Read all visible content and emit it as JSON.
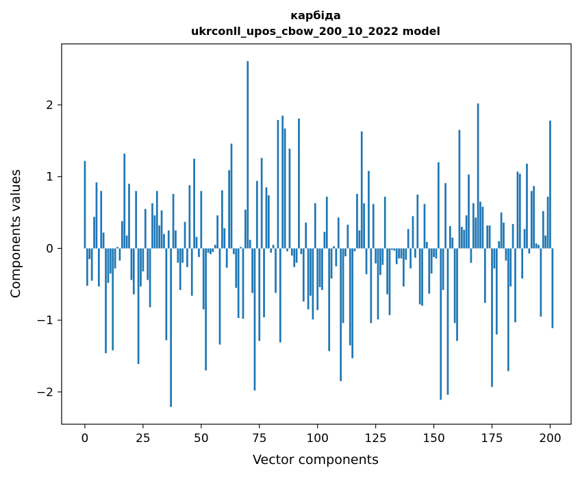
{
  "chart_data": {
    "type": "bar",
    "title": "карбіда",
    "subtitle": "ukrconll_upos_cbow_200_10_2022 model",
    "xlabel": "Vector components",
    "ylabel": "Components values",
    "xlim": [
      -10,
      209
    ],
    "ylim": [
      -2.45,
      2.85
    ],
    "xticks": [
      0,
      25,
      50,
      75,
      100,
      125,
      150,
      175,
      200
    ],
    "yticks": [
      -2,
      -1,
      0,
      1,
      2
    ],
    "ytick_labels": [
      "−2",
      "−1",
      "0",
      "1",
      "2"
    ],
    "bar_color": "#1f77b4",
    "grid": false,
    "values": [
      1.22,
      -0.52,
      -0.15,
      -0.45,
      0.44,
      0.92,
      -0.53,
      0.8,
      0.22,
      -1.46,
      -0.48,
      -0.35,
      -1.42,
      -0.28,
      0.02,
      -0.17,
      0.38,
      1.32,
      0.18,
      0.9,
      -0.44,
      -0.64,
      0.8,
      -1.61,
      -0.53,
      -0.32,
      0.55,
      -0.44,
      -0.82,
      0.63,
      0.46,
      0.8,
      0.32,
      0.53,
      0.2,
      -1.28,
      0.25,
      -2.21,
      0.76,
      0.25,
      -0.2,
      -0.58,
      -0.2,
      0.37,
      -0.26,
      0.88,
      -0.66,
      1.25,
      0.16,
      -0.12,
      0.8,
      -0.85,
      -1.7,
      -0.06,
      -0.08,
      -0.05,
      0.05,
      0.46,
      -1.34,
      0.81,
      0.28,
      -0.27,
      1.09,
      1.46,
      -0.08,
      -0.55,
      -0.97,
      0.02,
      -0.98,
      0.54,
      2.61,
      0.12,
      -0.62,
      -1.98,
      0.94,
      -1.29,
      1.26,
      -0.96,
      0.85,
      0.74,
      -0.06,
      0.05,
      -0.62,
      1.79,
      -1.31,
      1.85,
      1.67,
      -0.04,
      1.39,
      -0.1,
      -0.26,
      -0.2,
      1.81,
      -0.08,
      -0.74,
      0.36,
      -0.85,
      -0.66,
      -0.99,
      0.63,
      -0.86,
      -0.54,
      -0.58,
      0.23,
      0.72,
      -1.43,
      -0.42,
      0.03,
      -0.25,
      0.43,
      -1.85,
      -1.04,
      -0.11,
      0.33,
      -1.35,
      -1.53,
      -0.04,
      0.76,
      0.25,
      1.63,
      0.63,
      -0.36,
      1.08,
      -1.04,
      0.62,
      -0.21,
      -0.99,
      -0.37,
      -0.23,
      0.72,
      -0.64,
      -0.93,
      -0.02,
      -0.03,
      -0.22,
      -0.14,
      -0.14,
      -0.53,
      -0.16,
      0.27,
      -0.28,
      0.45,
      -0.13,
      0.75,
      -0.78,
      -0.8,
      0.62,
      0.09,
      -0.63,
      -0.35,
      -0.12,
      -0.14,
      1.2,
      -2.11,
      -0.58,
      0.91,
      -2.04,
      0.31,
      0.15,
      -1.04,
      -1.29,
      1.65,
      0.3,
      0.26,
      0.46,
      1.03,
      -0.2,
      0.63,
      0.43,
      2.02,
      0.65,
      0.58,
      -0.76,
      0.32,
      0.32,
      -1.93,
      -0.28,
      -1.2,
      0.1,
      0.5,
      0.36,
      -0.17,
      -1.71,
      -0.53,
      0.34,
      -1.03,
      1.07,
      1.04,
      -0.42,
      0.27,
      1.18,
      -0.07,
      0.8,
      0.87,
      0.07,
      0.05,
      -0.95,
      0.52,
      0.18,
      0.72,
      1.78,
      -1.11
    ]
  }
}
